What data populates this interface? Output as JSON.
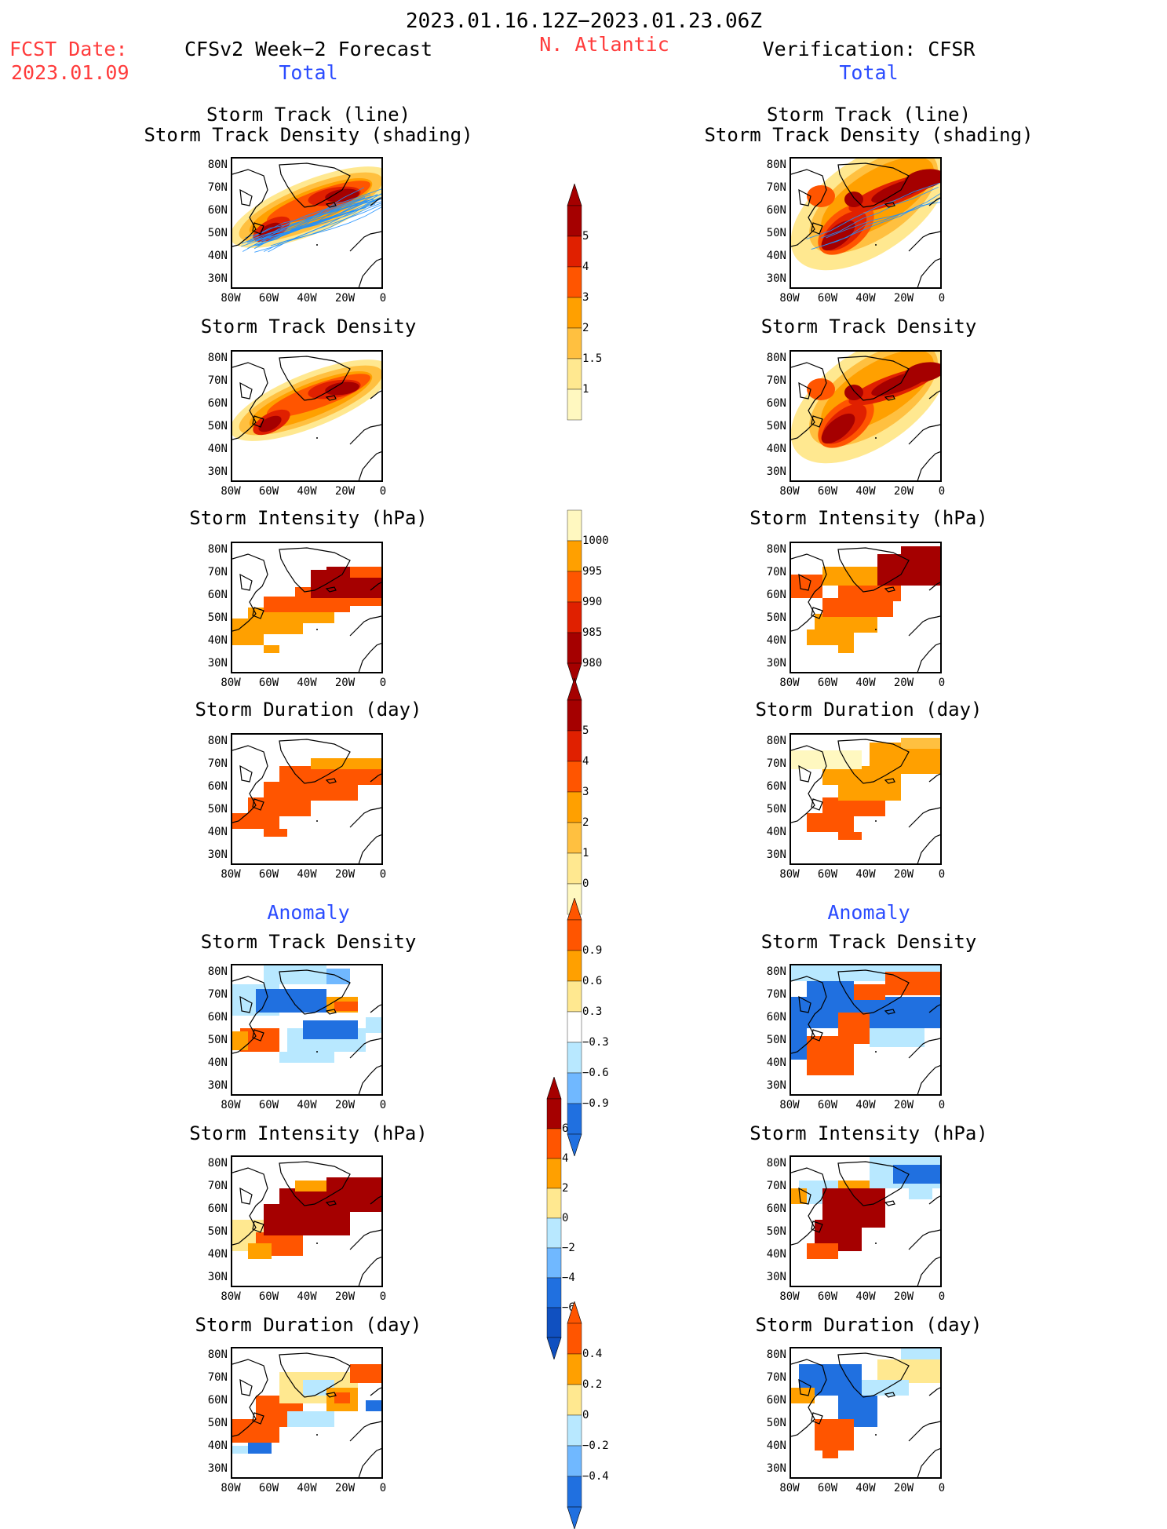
{
  "header": {
    "date_range": "2023.01.16.12Z−2023.01.23.06Z",
    "fcst_label": "FCST Date:",
    "fcst_date": "2023.01.09",
    "left_heading": "CFSv2 Week−2 Forecast",
    "region": "N. Atlantic",
    "right_heading": "Verification: CFSR",
    "total_left": "Total",
    "total_right": "Total",
    "anomaly_left": "Anomaly",
    "anomaly_right": "Anomaly"
  },
  "axes": {
    "y_ticks": [
      "80N",
      "70N",
      "60N",
      "50N",
      "40N",
      "30N"
    ],
    "x_ticks": [
      "80W",
      "60W",
      "40W",
      "20W",
      "0"
    ]
  },
  "panels": {
    "track_line": [
      "Storm Track (line)",
      "Storm Track Density (shading)"
    ],
    "density": "Storm Track Density",
    "intensity": "Storm Intensity (hPa)",
    "duration": "Storm Duration (day)"
  },
  "colorbars": {
    "density": [
      "5",
      "4",
      "3",
      "2",
      "1.5",
      "1"
    ],
    "intensity": [
      "1000",
      "995",
      "990",
      "985",
      "980"
    ],
    "duration": [
      "5",
      "4",
      "3",
      "2",
      "1",
      "0"
    ],
    "anom_density": [
      "0.9",
      "0.6",
      "0.3",
      "−0.3",
      "−0.6",
      "−0.9"
    ],
    "anom_intensity": [
      "6",
      "4",
      "2",
      "0",
      "−2",
      "−4",
      "−6"
    ],
    "anom_duration": [
      "0.4",
      "0.2",
      "0",
      "−0.2",
      "−0.4"
    ]
  },
  "colors": {
    "dark_red": "#a50000",
    "red": "#e02000",
    "red_orange": "#ff5500",
    "orange": "#ffa000",
    "light_orange": "#ffc040",
    "yellow": "#ffe890",
    "pale": "#fff8c0",
    "light_blue": "#b8e8ff",
    "mid_blue": "#70b8ff",
    "blue": "#2070e0",
    "dark_blue": "#1050c0",
    "track_line": "#1e90ff"
  }
}
